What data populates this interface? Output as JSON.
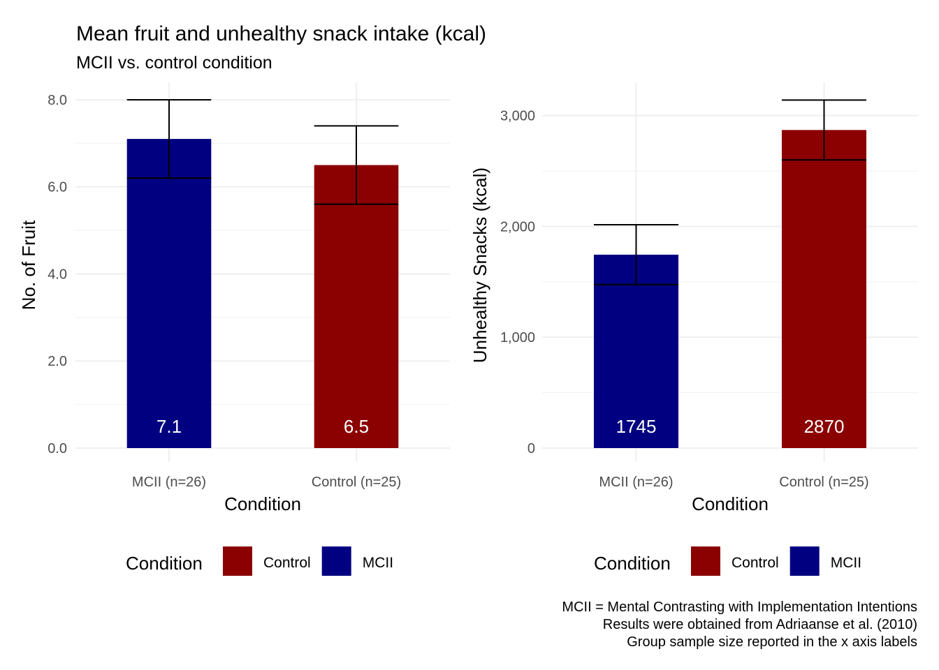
{
  "title": "Mean fruit and unhealthy snack intake (kcal)",
  "subtitle": "MCII vs. control condition",
  "caption": [
    "MCII = Mental Contrasting with Implementation Intentions",
    "Results were obtained from Adriaanse et al. (2010)",
    "Group sample size reported in the x axis labels"
  ],
  "colors": {
    "MCII": "#000080",
    "Control": "#8b0000"
  },
  "chart_data": [
    {
      "type": "bar",
      "xlabel": "Condition",
      "ylabel": "No. of Fruit",
      "categories": [
        "MCII (n=26)",
        "Control (n=25)"
      ],
      "groups": [
        "MCII",
        "Control"
      ],
      "values": [
        7.1,
        6.5
      ],
      "value_labels": [
        "7.1",
        "6.5"
      ],
      "error_bars": [
        [
          6.2,
          8.0
        ],
        [
          5.6,
          7.4
        ]
      ],
      "ylim": [
        0,
        8.4
      ],
      "yticks": [
        0,
        2,
        4,
        6,
        8
      ],
      "ytick_labels": [
        "0.0",
        "2.0",
        "4.0",
        "6.0",
        "8.0"
      ],
      "grid": true,
      "legend": {
        "title": "Condition",
        "position": "bottom",
        "items": [
          "Control",
          "MCII"
        ]
      }
    },
    {
      "type": "bar",
      "xlabel": "Condition",
      "ylabel": "Unhealthy Snacks (kcal)",
      "categories": [
        "MCII (n=26)",
        "Control (n=25)"
      ],
      "groups": [
        "MCII",
        "Control"
      ],
      "values": [
        1745,
        2870
      ],
      "value_labels": [
        "1745",
        "2870"
      ],
      "error_bars": [
        [
          1475,
          2015
        ],
        [
          2600,
          3140
        ]
      ],
      "ylim": [
        0,
        3300
      ],
      "yticks": [
        0,
        1000,
        2000,
        3000
      ],
      "ytick_labels": [
        "0",
        "1,000",
        "2,000",
        "3,000"
      ],
      "grid": true,
      "legend": {
        "title": "Condition",
        "position": "bottom",
        "items": [
          "Control",
          "MCII"
        ]
      }
    }
  ]
}
